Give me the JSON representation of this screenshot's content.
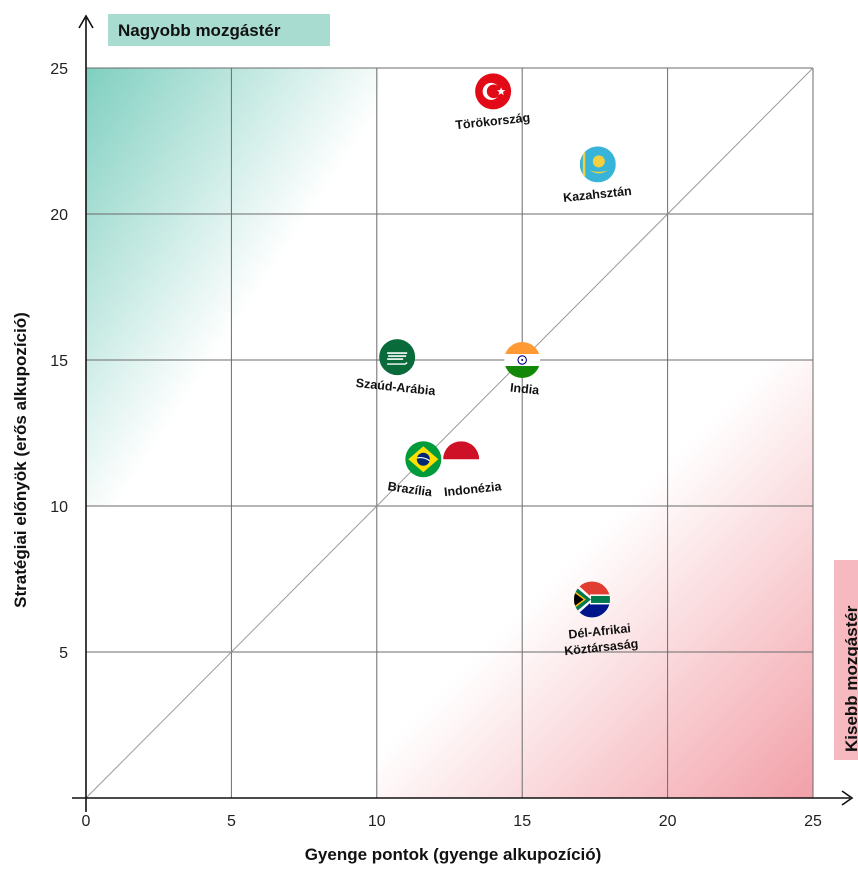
{
  "chart_data": {
    "type": "scatter",
    "title": "",
    "xlabel": "Gyenge pontok (gyenge alkupozíció)",
    "ylabel": "Stratégiai előnyök (erős alkupozíció)",
    "xlim": [
      0,
      25
    ],
    "ylim": [
      0,
      25
    ],
    "xticks": [
      0,
      5,
      10,
      15,
      20,
      25
    ],
    "yticks": [
      5,
      10,
      15,
      20,
      25
    ],
    "grid": true,
    "diagonal": true,
    "region_labels": {
      "upper_left": "Nagyobb mozgástér",
      "lower_right": "Kisebb mozgástér"
    },
    "colors": {
      "upper_region": "#7fcfc0",
      "lower_region": "#f2a0a8",
      "tag_teal": "#a8dcd0",
      "tag_pink": "#f6b9bf"
    },
    "points": [
      {
        "label": "Törökország",
        "x": 14.0,
        "y": 24.2,
        "flag": "turkey-flag-icon"
      },
      {
        "label": "Kazahsztán",
        "x": 17.6,
        "y": 21.7,
        "flag": "kazakhstan-flag-icon"
      },
      {
        "label": "Szaúd-Arábia",
        "x": 10.7,
        "y": 15.1,
        "flag": "saudi-arabia-flag-icon"
      },
      {
        "label": "India",
        "x": 15.0,
        "y": 15.0,
        "flag": "india-flag-icon"
      },
      {
        "label": "Brazília",
        "x": 11.6,
        "y": 11.6,
        "flag": "brazil-flag-icon"
      },
      {
        "label": "Indonézia",
        "x": 12.9,
        "y": 11.6,
        "flag": "indonesia-flag-icon"
      },
      {
        "label": "Dél-Afrikai Köztársaság",
        "x": 17.4,
        "y": 6.8,
        "flag": "south-africa-flag-icon"
      }
    ]
  }
}
